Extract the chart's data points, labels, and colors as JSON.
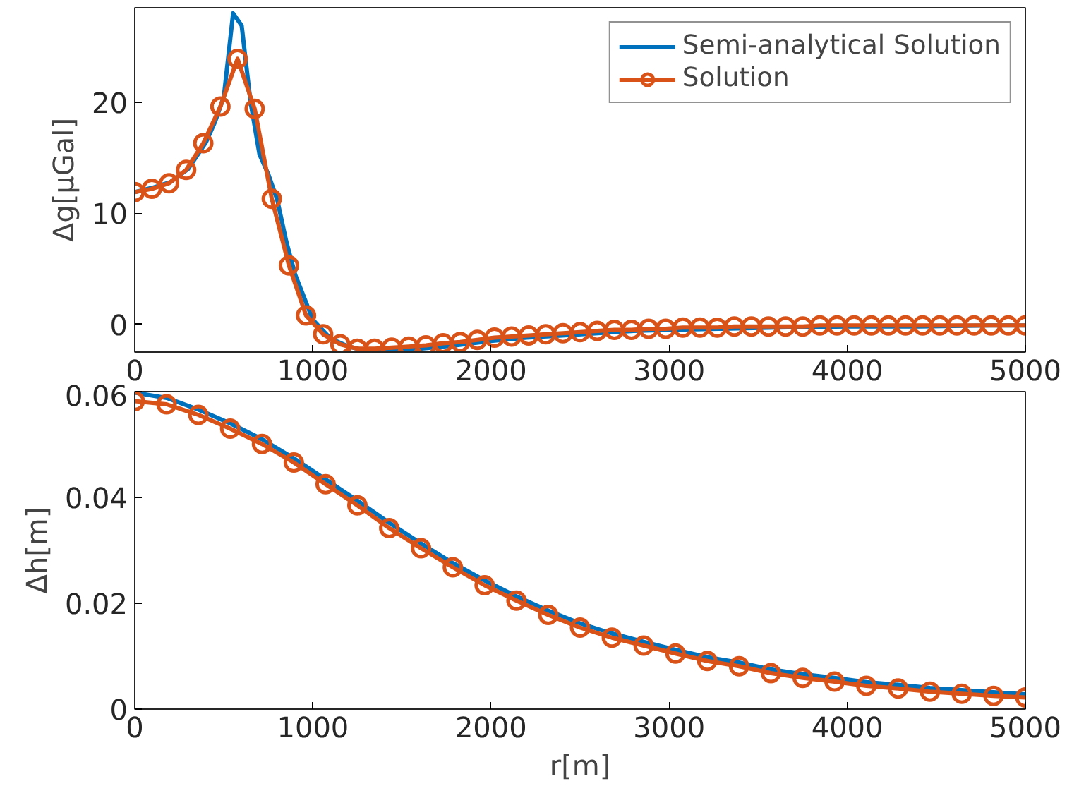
{
  "chart_data": [
    {
      "type": "line",
      "ylabel": "Δg[μGal]",
      "xlim": [
        0,
        5000
      ],
      "ylim": [
        -2.5,
        28.5
      ],
      "xticks": [
        0,
        1000,
        2000,
        3000,
        4000,
        5000
      ],
      "yticks": [
        0,
        10,
        20
      ],
      "grid": false,
      "legend": "top right",
      "line_style": "solid",
      "series": [
        {
          "name": "Semi-analytical Solution",
          "color": "#0072bd",
          "marker": "none",
          "x": [
            0,
            100,
            200,
            300,
            400,
            450,
            500,
            552,
            600,
            650,
            700,
            750,
            800,
            850,
            900,
            1000,
            1100,
            1200,
            1300,
            1400,
            1500,
            1600,
            1800,
            2000,
            2200,
            2400,
            2600,
            2800,
            3000,
            3300,
            3600,
            4000,
            4400,
            4800,
            5000
          ],
          "values": [
            11.9,
            12.3,
            12.8,
            14.0,
            16.4,
            18.2,
            20.5,
            28.0,
            26.9,
            20.0,
            15.3,
            13.5,
            11.2,
            7.5,
            4.5,
            0.4,
            -1.3,
            -2.0,
            -2.4,
            -2.4,
            -2.3,
            -2.2,
            -1.9,
            -1.5,
            -1.2,
            -1.0,
            -0.8,
            -0.6,
            -0.5,
            -0.4,
            -0.3,
            -0.2,
            -0.2,
            -0.1,
            -0.1
          ]
        },
        {
          "name": "Solution",
          "color": "#d95319",
          "marker": "circle",
          "x": [
            0,
            96.15,
            192.31,
            288.46,
            384.62,
            480.77,
            576.92,
            673.08,
            769.23,
            865.38,
            961.54,
            1057.69,
            1153.85,
            1250,
            1346.15,
            1442.31,
            1538.46,
            1634.62,
            1730.77,
            1826.92,
            1923.08,
            2019.23,
            2115.38,
            2211.54,
            2307.69,
            2403.85,
            2500,
            2596.15,
            2692.31,
            2788.46,
            2884.62,
            2980.77,
            3076.92,
            3173.08,
            3269.23,
            3365.38,
            3461.54,
            3557.69,
            3653.85,
            3750,
            3846.15,
            3942.31,
            4038.46,
            4134.62,
            4230.77,
            4326.92,
            4423.08,
            4519.23,
            4615.38,
            4711.54,
            4807.69,
            4903.85,
            5000
          ],
          "values": [
            11.9,
            12.2,
            12.7,
            13.9,
            16.3,
            19.6,
            23.9,
            19.4,
            11.3,
            5.3,
            0.8,
            -0.9,
            -1.8,
            -2.2,
            -2.2,
            -2.1,
            -2.0,
            -1.9,
            -1.7,
            -1.6,
            -1.4,
            -1.2,
            -1.1,
            -1.0,
            -0.9,
            -0.8,
            -0.7,
            -0.6,
            -0.5,
            -0.5,
            -0.4,
            -0.4,
            -0.3,
            -0.3,
            -0.3,
            -0.2,
            -0.2,
            -0.2,
            -0.2,
            -0.2,
            -0.1,
            -0.1,
            -0.1,
            -0.1,
            -0.1,
            -0.1,
            -0.1,
            -0.1,
            -0.1,
            -0.1,
            -0.1,
            -0.1,
            -0.1
          ]
        }
      ]
    },
    {
      "type": "line",
      "xlabel": "r[m]",
      "ylabel": "Δh[m]",
      "xlim": [
        0,
        5000
      ],
      "ylim": [
        0,
        0.06
      ],
      "xticks": [
        0,
        1000,
        2000,
        3000,
        4000,
        5000
      ],
      "yticks": [
        0,
        0.02,
        0.04,
        0.06
      ],
      "grid": false,
      "line_style": "solid",
      "series": [
        {
          "color": "#0072bd",
          "marker": "none",
          "x": [
            0,
            178.57,
            357.14,
            535.71,
            714.29,
            892.86,
            1071.43,
            1250,
            1428.57,
            1607.14,
            1785.71,
            1964.29,
            2142.86,
            2321.43,
            2500,
            2678.57,
            2857.14,
            3035.71,
            3214.29,
            3392.86,
            3571.43,
            3750,
            3928.57,
            4107.14,
            4285.71,
            4464.29,
            4642.86,
            4821.43,
            5000
          ],
          "values": [
            0.0598,
            0.0588,
            0.0566,
            0.054,
            0.051,
            0.0474,
            0.0434,
            0.0394,
            0.0352,
            0.0313,
            0.0276,
            0.0243,
            0.0213,
            0.0186,
            0.0162,
            0.0143,
            0.0127,
            0.0112,
            0.0098,
            0.0088,
            0.0075,
            0.0066,
            0.0059,
            0.0051,
            0.0046,
            0.004,
            0.0036,
            0.0032,
            0.0028
          ]
        },
        {
          "color": "#d95319",
          "marker": "circle",
          "x": [
            0,
            178.57,
            357.14,
            535.71,
            714.29,
            892.86,
            1071.43,
            1250,
            1428.57,
            1607.14,
            1785.71,
            1964.29,
            2142.86,
            2321.43,
            2500,
            2678.57,
            2857.14,
            3035.71,
            3214.29,
            3392.86,
            3571.43,
            3750,
            3928.57,
            4107.14,
            4285.71,
            4464.29,
            4642.86,
            4821.43,
            5000
          ],
          "values": [
            0.0582,
            0.0576,
            0.0556,
            0.053,
            0.0501,
            0.0466,
            0.0425,
            0.0385,
            0.0342,
            0.0304,
            0.0268,
            0.0234,
            0.0205,
            0.0178,
            0.0154,
            0.0135,
            0.012,
            0.0105,
            0.0091,
            0.0081,
            0.0068,
            0.0059,
            0.0052,
            0.0044,
            0.0039,
            0.0033,
            0.0029,
            0.0025,
            0.0022
          ]
        }
      ]
    }
  ]
}
